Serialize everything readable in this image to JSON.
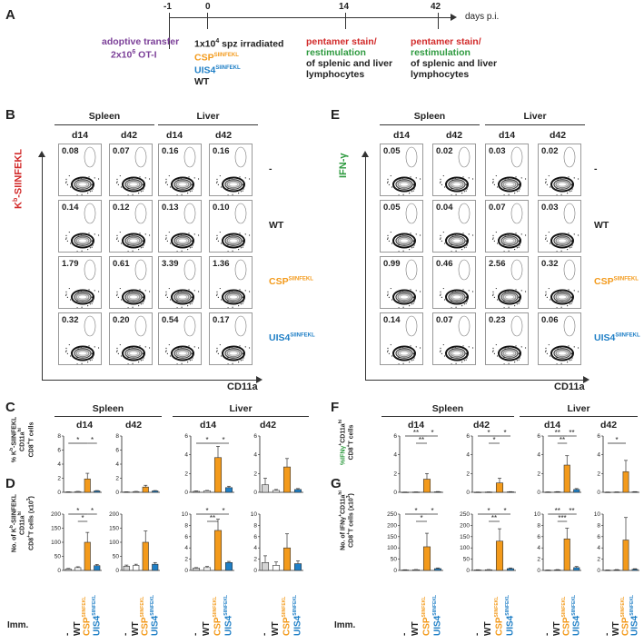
{
  "panels": {
    "A": "A",
    "B": "B",
    "C": "C",
    "D": "D",
    "E": "E",
    "F": "F",
    "G": "G"
  },
  "timeline": {
    "days": [
      "-1",
      "0",
      "14",
      "42"
    ],
    "unit": "days p.i.",
    "step_m1": {
      "l1": "adoptive transfer",
      "l2": "2x10",
      "l2sup": "6",
      "l2end": " OT-I"
    },
    "step_0": {
      "l1a": "1x10",
      "l1sup": "4",
      "l1b": " spz irradiated",
      "csp": "CSP",
      "csp_sup": "SIINFEKL",
      "uis": "UIS4",
      "uis_sup": "SIINFEKL",
      "wt": "WT"
    },
    "step_14": {
      "l1": "pentamer stain/",
      "l2": "restimulation",
      "l3": "of splenic and liver",
      "l4": "lymphocytes"
    },
    "step_42": {
      "l1": "pentamer stain/",
      "l2": "restimulation",
      "l3": "of splenic and liver",
      "l4": "lymphocytes"
    }
  },
  "headers": {
    "spleen": "Spleen",
    "liver": "Liver",
    "d14": "d14",
    "d42": "d42"
  },
  "flow_B": {
    "y_axis": "K",
    "y_sup": "b",
    "y_rest": "-SIINFEKL",
    "x_axis": "CD11a",
    "rows": [
      {
        "label": "-",
        "values": [
          "0.08",
          "0.07",
          "0.16",
          "0.16"
        ]
      },
      {
        "label": "WT",
        "values": [
          "0.14",
          "0.12",
          "0.13",
          "0.10"
        ]
      },
      {
        "label": "CSP",
        "sup": "SIINFEKL",
        "values": [
          "1.79",
          "0.61",
          "3.39",
          "1.36"
        ]
      },
      {
        "label": "UIS4",
        "sup": "SIINFEKL",
        "values": [
          "0.32",
          "0.20",
          "0.54",
          "0.17"
        ]
      }
    ]
  },
  "flow_E": {
    "y_axis": "IFN-γ",
    "x_axis": "CD11a",
    "rows": [
      {
        "label": "-",
        "values": [
          "0.05",
          "0.02",
          "0.03",
          "0.02"
        ]
      },
      {
        "label": "WT",
        "values": [
          "0.05",
          "0.04",
          "0.07",
          "0.03"
        ]
      },
      {
        "label": "CSP",
        "sup": "SIINFEKL",
        "values": [
          "0.99",
          "0.46",
          "2.56",
          "0.32"
        ]
      },
      {
        "label": "UIS4",
        "sup": "SIINFEKL",
        "values": [
          "0.14",
          "0.07",
          "0.23",
          "0.06"
        ]
      }
    ]
  },
  "ticks": {
    "t1": "10",
    "t1s": "5",
    "t2": "10",
    "t2s": "4",
    "t3": "10",
    "t3s": "3",
    "t4": "0"
  },
  "ylabels": {
    "C1": "% K",
    "C1sup": "b",
    "C2": "-SIINFEKL",
    "C3": "CD11a",
    "C3sup": "hi",
    "C4": "CD8",
    "C4sup": "+",
    "C4end": "T cells",
    "D1": "No. of K",
    "D1sup": "b",
    "D2": "-SIINFEKL",
    "D3": "CD11a",
    "D3sup": "hi",
    "D4": "CD8",
    "D4sup": "+",
    "D4end": "T cells (x10",
    "D4sup2": "3",
    "D4end2": ")",
    "F1": "%IFNγ",
    "F1sup": "+",
    "F2": "CD11a",
    "F2sup": "hi",
    "F3": "CD8",
    "F3sup": "+",
    "F3end": "T cells",
    "G1": "No. of IFNγ",
    "G1sup": "+",
    "G2": "CD11a",
    "G2sup": "hi",
    "G3": "CD8",
    "G3sup": "+",
    "G3end": "T cells (x10",
    "G3sup2": "3",
    "G3end2": ")"
  },
  "xcats": {
    "imm": "Imm.",
    "none": "-",
    "wt": "WT",
    "csp": "CSP",
    "csp_sup": "SIINFEKL",
    "uis": "UIS4",
    "uis_sup": "SIINFEKL"
  },
  "colors": {
    "none": "#d4d4d4",
    "wt": "#ffffff",
    "csp": "#f39a1b",
    "uis": "#1f7fc6"
  },
  "chart_data": [
    {
      "id": "C1",
      "type": "bar",
      "title": "Spleen d14",
      "ylim": [
        0,
        8
      ],
      "yticks": [
        "0",
        "2",
        "4",
        "6",
        "8"
      ],
      "categories": [
        "-",
        "WT",
        "CSP",
        "UIS4"
      ],
      "values": [
        0.05,
        0.1,
        1.9,
        0.2
      ],
      "errors": [
        0.02,
        0.03,
        0.8,
        0.05
      ],
      "sig": [
        {
          "a": 2,
          "b": 0,
          "t": "*",
          "lvl": 1
        },
        {
          "a": 2,
          "b": 3,
          "t": "*",
          "lvl": 1
        }
      ]
    },
    {
      "id": "C2",
      "type": "bar",
      "title": "Spleen d42",
      "ylim": [
        0,
        8
      ],
      "yticks": [
        "0",
        "2",
        "4",
        "6",
        "8"
      ],
      "categories": [
        "-",
        "WT",
        "CSP",
        "UIS4"
      ],
      "values": [
        0.05,
        0.1,
        0.75,
        0.2
      ],
      "errors": [
        0.02,
        0.03,
        0.25,
        0.05
      ],
      "sig": []
    },
    {
      "id": "C3",
      "type": "bar",
      "title": "Liver d14",
      "ylim": [
        0,
        6
      ],
      "yticks": [
        "0",
        "2",
        "4",
        "6"
      ],
      "categories": [
        "-",
        "WT",
        "CSP",
        "UIS4"
      ],
      "values": [
        0.1,
        0.15,
        3.7,
        0.5
      ],
      "errors": [
        0.05,
        0.05,
        1.2,
        0.15
      ],
      "sig": [
        {
          "a": 2,
          "b": 0,
          "t": "*",
          "lvl": 1
        },
        {
          "a": 2,
          "b": 3,
          "t": "*",
          "lvl": 1
        }
      ]
    },
    {
      "id": "C4",
      "type": "bar",
      "title": "Liver d42",
      "ylim": [
        0,
        6
      ],
      "yticks": [
        "0",
        "2",
        "4",
        "6"
      ],
      "categories": [
        "-",
        "WT",
        "CSP",
        "UIS4"
      ],
      "values": [
        0.8,
        0.2,
        2.7,
        0.3
      ],
      "errors": [
        0.7,
        0.1,
        0.9,
        0.1
      ],
      "sig": []
    },
    {
      "id": "D1",
      "type": "bar",
      "title": "Spleen d14",
      "ylim": [
        0,
        200
      ],
      "yticks": [
        "0",
        "50",
        "100",
        "150",
        "200"
      ],
      "categories": [
        "-",
        "WT",
        "CSP",
        "UIS4"
      ],
      "values": [
        5,
        10,
        100,
        17
      ],
      "errors": [
        2,
        3,
        35,
        4
      ],
      "sig": [
        {
          "a": 2,
          "b": 0,
          "t": "*",
          "lvl": 2
        },
        {
          "a": 2,
          "b": 1,
          "t": "*",
          "lvl": 1
        },
        {
          "a": 2,
          "b": 3,
          "t": "*",
          "lvl": 2
        }
      ]
    },
    {
      "id": "D2",
      "type": "bar",
      "title": "Spleen d42",
      "ylim": [
        0,
        200
      ],
      "yticks": [
        "0",
        "50",
        "100",
        "150",
        "200"
      ],
      "categories": [
        "-",
        "WT",
        "CSP",
        "UIS4"
      ],
      "values": [
        15,
        18,
        100,
        22
      ],
      "errors": [
        4,
        4,
        40,
        6
      ],
      "sig": []
    },
    {
      "id": "D3",
      "type": "bar",
      "title": "Liver d14",
      "ylim": [
        0,
        10
      ],
      "yticks": [
        "0",
        "2",
        "4",
        "6",
        "8",
        "10"
      ],
      "categories": [
        "-",
        "WT",
        "CSP",
        "UIS4"
      ],
      "values": [
        0.4,
        0.5,
        7.1,
        1.4
      ],
      "errors": [
        0.1,
        0.2,
        2.0,
        0.2
      ],
      "sig": [
        {
          "a": 2,
          "b": 0,
          "t": "*",
          "lvl": 2
        },
        {
          "a": 2,
          "b": 1,
          "t": "**",
          "lvl": 1
        },
        {
          "a": 2,
          "b": 3,
          "t": "*",
          "lvl": 2
        }
      ]
    },
    {
      "id": "D4",
      "type": "bar",
      "title": "Liver d42",
      "ylim": [
        0,
        10
      ],
      "yticks": [
        "0",
        "2",
        "4",
        "6",
        "8",
        "10"
      ],
      "categories": [
        "-",
        "WT",
        "CSP",
        "UIS4"
      ],
      "values": [
        1.4,
        0.9,
        4.0,
        1.2
      ],
      "errors": [
        1.2,
        0.6,
        2.5,
        0.5
      ],
      "sig": []
    },
    {
      "id": "F1",
      "type": "bar",
      "title": "Spleen d14",
      "ylim": [
        0,
        6
      ],
      "yticks": [
        "0",
        "2",
        "4",
        "6"
      ],
      "categories": [
        "-",
        "WT",
        "CSP",
        "UIS4"
      ],
      "values": [
        0.02,
        0.03,
        1.4,
        0.05
      ],
      "errors": [
        0.01,
        0.01,
        0.6,
        0.03
      ],
      "sig": [
        {
          "a": 2,
          "b": 0,
          "t": "**",
          "lvl": 2
        },
        {
          "a": 2,
          "b": 1,
          "t": "**",
          "lvl": 1
        },
        {
          "a": 2,
          "b": 3,
          "t": "*",
          "lvl": 2
        }
      ]
    },
    {
      "id": "F2",
      "type": "bar",
      "title": "Spleen d42",
      "ylim": [
        0,
        6
      ],
      "yticks": [
        "0",
        "2",
        "4",
        "6"
      ],
      "categories": [
        "-",
        "WT",
        "CSP",
        "UIS4"
      ],
      "values": [
        0.02,
        0.03,
        1.0,
        0.05
      ],
      "errors": [
        0.01,
        0.01,
        0.5,
        0.02
      ],
      "sig": [
        {
          "a": 2,
          "b": 0,
          "t": "*",
          "lvl": 2
        },
        {
          "a": 2,
          "b": 1,
          "t": "*",
          "lvl": 1
        },
        {
          "a": 2,
          "b": 3,
          "t": "*",
          "lvl": 2
        }
      ]
    },
    {
      "id": "F3",
      "type": "bar",
      "title": "Liver d14",
      "ylim": [
        0,
        6
      ],
      "yticks": [
        "0",
        "2",
        "4",
        "6"
      ],
      "categories": [
        "-",
        "WT",
        "CSP",
        "UIS4"
      ],
      "values": [
        0.03,
        0.05,
        2.9,
        0.3
      ],
      "errors": [
        0.01,
        0.02,
        1.0,
        0.1
      ],
      "sig": [
        {
          "a": 2,
          "b": 0,
          "t": "**",
          "lvl": 2
        },
        {
          "a": 2,
          "b": 1,
          "t": "**",
          "lvl": 1
        },
        {
          "a": 2,
          "b": 3,
          "t": "**",
          "lvl": 2
        }
      ]
    },
    {
      "id": "F4",
      "type": "bar",
      "title": "Liver d42",
      "ylim": [
        0,
        6
      ],
      "yticks": [
        "0",
        "2",
        "4",
        "6"
      ],
      "categories": [
        "-",
        "WT",
        "CSP",
        "UIS4"
      ],
      "values": [
        0.02,
        0.03,
        2.2,
        0.05
      ],
      "errors": [
        0.01,
        0.01,
        1.2,
        0.02
      ],
      "sig": [
        {
          "a": 2,
          "b": 0,
          "t": "*",
          "lvl": 1
        }
      ]
    },
    {
      "id": "G1",
      "type": "bar",
      "title": "Spleen d14",
      "ylim": [
        0,
        250
      ],
      "yticks": [
        "0",
        "50",
        "100",
        "150",
        "200",
        "250"
      ],
      "categories": [
        "-",
        "WT",
        "CSP",
        "UIS4"
      ],
      "values": [
        2,
        3,
        105,
        8
      ],
      "errors": [
        1,
        1,
        60,
        3
      ],
      "sig": [
        {
          "a": 2,
          "b": 0,
          "t": "*",
          "lvl": 2
        },
        {
          "a": 2,
          "b": 1,
          "t": "*",
          "lvl": 1
        },
        {
          "a": 2,
          "b": 3,
          "t": "*",
          "lvl": 2
        }
      ]
    },
    {
      "id": "G2",
      "type": "bar",
      "title": "Spleen d42",
      "ylim": [
        0,
        250
      ],
      "yticks": [
        "0",
        "50",
        "100",
        "150",
        "200",
        "250"
      ],
      "categories": [
        "-",
        "WT",
        "CSP",
        "UIS4"
      ],
      "values": [
        2,
        3,
        130,
        8
      ],
      "errors": [
        1,
        1,
        55,
        3
      ],
      "sig": [
        {
          "a": 2,
          "b": 0,
          "t": "*",
          "lvl": 2
        },
        {
          "a": 2,
          "b": 1,
          "t": "**",
          "lvl": 1
        },
        {
          "a": 2,
          "b": 3,
          "t": "*",
          "lvl": 2
        }
      ]
    },
    {
      "id": "G3",
      "type": "bar",
      "title": "Liver d14",
      "ylim": [
        0,
        10
      ],
      "yticks": [
        "0",
        "2",
        "4",
        "6",
        "8",
        "10"
      ],
      "categories": [
        "-",
        "WT",
        "CSP",
        "UIS4"
      ],
      "values": [
        0.05,
        0.1,
        5.6,
        0.5
      ],
      "errors": [
        0.02,
        0.05,
        1.9,
        0.2
      ],
      "sig": [
        {
          "a": 2,
          "b": 0,
          "t": "**",
          "lvl": 2
        },
        {
          "a": 2,
          "b": 1,
          "t": "***",
          "lvl": 1
        },
        {
          "a": 2,
          "b": 3,
          "t": "**",
          "lvl": 2
        }
      ]
    },
    {
      "id": "G4",
      "type": "bar",
      "title": "Liver d42",
      "ylim": [
        0,
        10
      ],
      "yticks": [
        "0",
        "2",
        "4",
        "6",
        "8",
        "10"
      ],
      "categories": [
        "-",
        "WT",
        "CSP",
        "UIS4"
      ],
      "values": [
        0.05,
        0.1,
        5.4,
        0.2
      ],
      "errors": [
        0.02,
        0.05,
        4.0,
        0.1
      ],
      "sig": []
    }
  ]
}
